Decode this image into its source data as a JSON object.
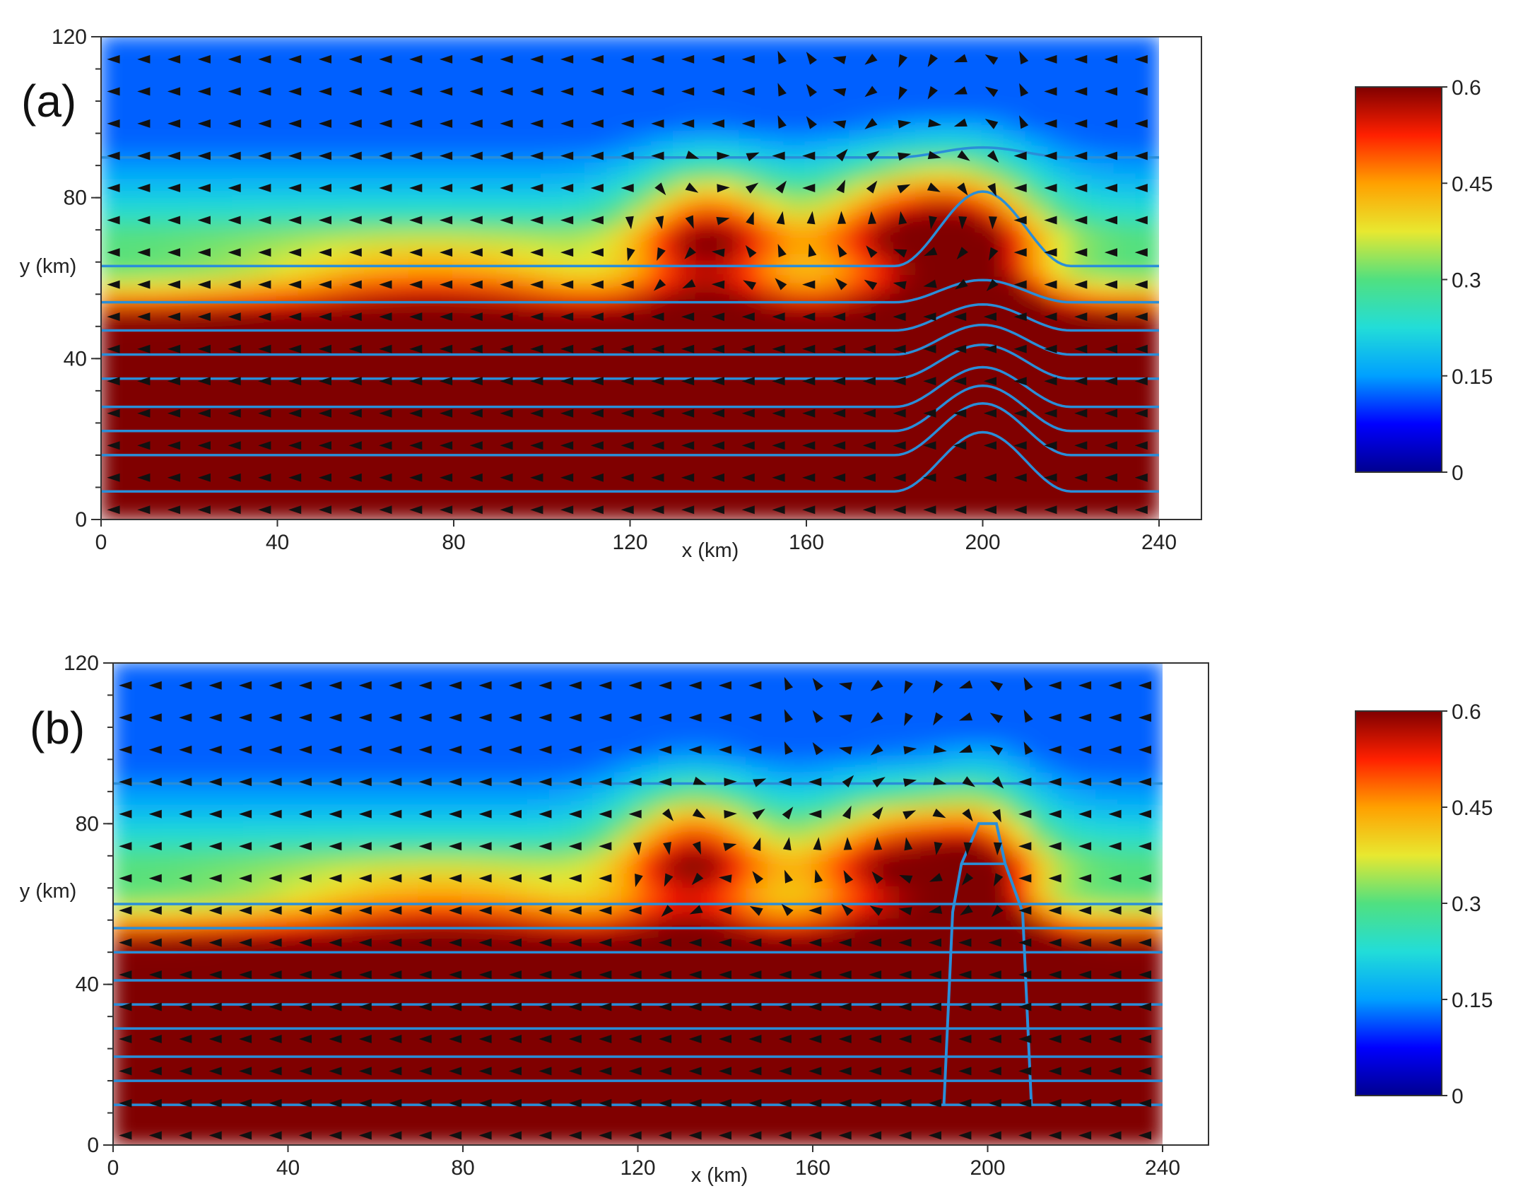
{
  "chart_data": [
    {
      "type": "heatmap",
      "panel_label": "(a)",
      "xlabel": "x (km)",
      "ylabel": "y (km)",
      "xlim": [
        0,
        240
      ],
      "ylim": [
        0,
        120
      ],
      "field_extent_x": [
        0,
        240
      ],
      "x_ticks": [
        "0",
        "40",
        "80",
        "120",
        "160",
        "200",
        "240"
      ],
      "y_ticks": [
        "0",
        "40",
        "80",
        "120"
      ],
      "colorbar": {
        "min": 0,
        "max": 0.6,
        "ticks": [
          "0",
          "0.15",
          "0.3",
          "0.45",
          "0.6"
        ]
      },
      "terrain": {
        "shape": "smooth",
        "center_x": 200,
        "half_width": 20,
        "height": 14
      },
      "contour_base_y": [
        7,
        16,
        22,
        28,
        35,
        41,
        47,
        54,
        63,
        90
      ],
      "vector_field": "uniform grid of arrows, westward flow aloft with eddies near x=120-200"
    },
    {
      "type": "heatmap",
      "panel_label": "(b)",
      "xlabel": "x (km)",
      "ylabel": "y (km)",
      "xlim": [
        0,
        240
      ],
      "ylim": [
        0,
        120
      ],
      "field_extent_x": [
        0,
        240
      ],
      "x_ticks": [
        "0",
        "40",
        "80",
        "120",
        "160",
        "200",
        "240"
      ],
      "y_ticks": [
        "0",
        "40",
        "80",
        "120"
      ],
      "colorbar": {
        "min": 0,
        "max": 0.6,
        "ticks": [
          "0",
          "0.15",
          "0.3",
          "0.45",
          "0.6"
        ]
      },
      "terrain": {
        "shape": "stepped",
        "x_left": 190,
        "x_right": 210,
        "top": 80
      },
      "contour_base_y": [
        10,
        16,
        22,
        29,
        35,
        41,
        48,
        54,
        60,
        90
      ],
      "vector_field": "uniform grid of arrows, westward flow aloft with eddies near x=120-200"
    }
  ],
  "colors": {
    "colormap": [
      "#00008f",
      "#0000ff",
      "#00a0ff",
      "#22ddd8",
      "#50e080",
      "#e8e830",
      "#ffa000",
      "#ff2000",
      "#800000"
    ],
    "contour": "#2a8ed8",
    "arrow": "#111111",
    "frame": "#333333"
  }
}
